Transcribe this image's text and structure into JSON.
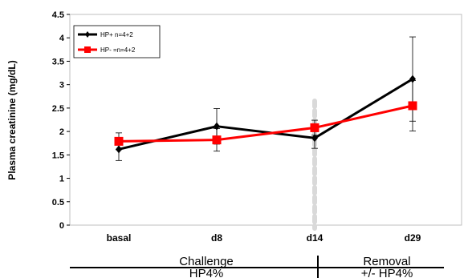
{
  "chart_data": {
    "type": "line",
    "title": "",
    "xlabel": "",
    "ylabel": "Plasma creatinine  (mg/dL)",
    "categories": [
      "basal",
      "d8",
      "d14",
      "d29"
    ],
    "ylim": [
      0,
      4.5
    ],
    "yticks": [
      "0",
      "0.5",
      "1",
      "1.5",
      "2",
      "2.5",
      "3",
      "3.5",
      "4",
      "4.5"
    ],
    "grid": false,
    "legend_position": "top-left",
    "series": [
      {
        "name": "HP+  n=4+2",
        "color": "#000000",
        "marker": "diamond",
        "values": [
          1.62,
          2.11,
          1.86,
          3.12
        ],
        "error": [
          0.24,
          0.38,
          0.22,
          0.9
        ]
      },
      {
        "name": "HP-  =n=4+2",
        "color": "#ff0000",
        "marker": "square",
        "values": [
          1.79,
          1.82,
          2.08,
          2.55
        ],
        "error": [
          0.18,
          0.24,
          0.16,
          0.54
        ]
      }
    ],
    "annotations": {
      "divider_at_category": "d14",
      "divider_color": "#d9d9d9",
      "phases": [
        {
          "line1": "Challenge",
          "line2": "HP4%"
        },
        {
          "line1": "Removal",
          "line2": "+/-  HP4%"
        }
      ]
    }
  }
}
